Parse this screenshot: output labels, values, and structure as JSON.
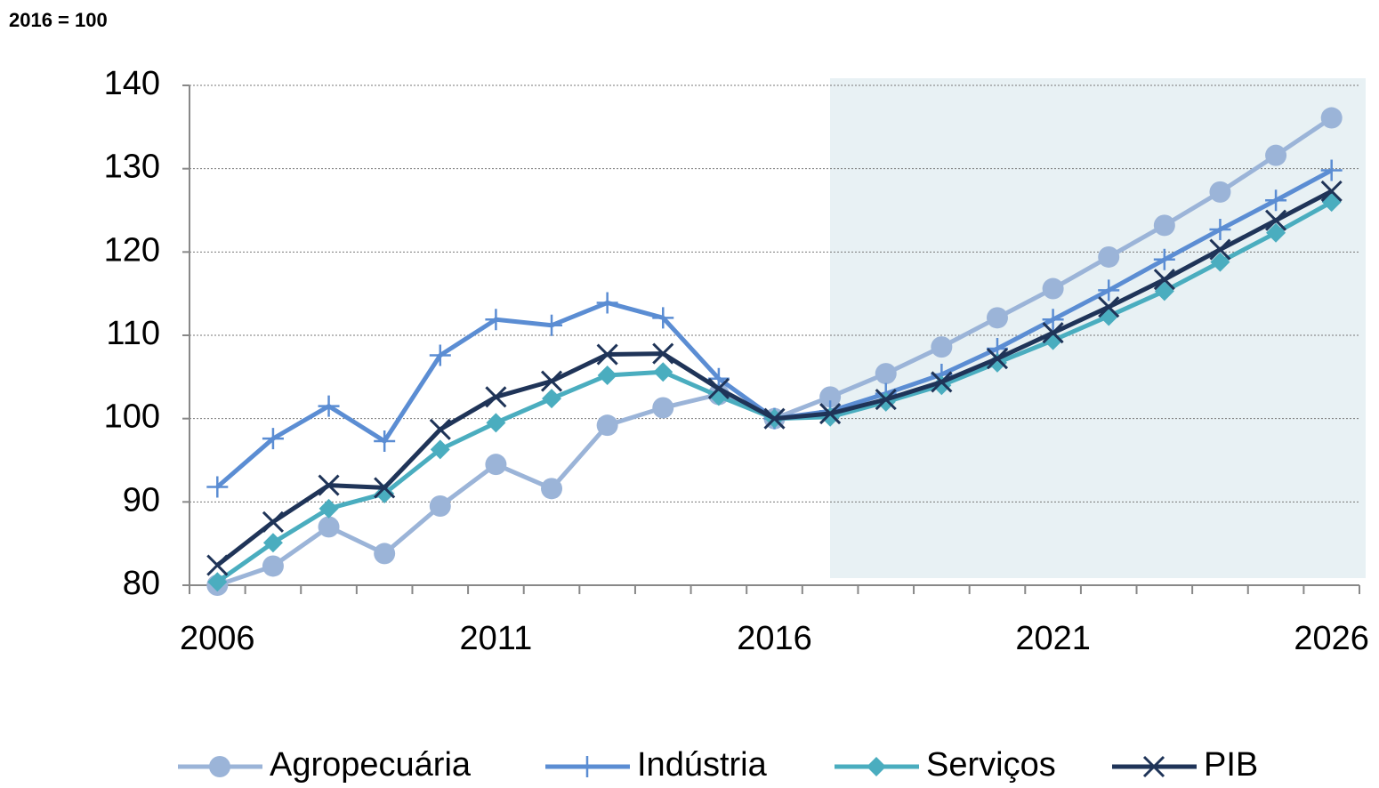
{
  "chart_data": {
    "type": "line",
    "title": "2016 = 100",
    "categories": [
      "2006",
      null,
      null,
      null,
      null,
      "2011",
      null,
      null,
      null,
      null,
      "2016",
      null,
      null,
      null,
      null,
      "2021",
      null,
      null,
      null,
      null,
      "2026"
    ],
    "series": [
      {
        "name": "Agropecuária",
        "color": "#9bb4d8",
        "marker": "circle",
        "values": [
          80.0,
          82.3,
          87.0,
          83.8,
          89.5,
          94.5,
          91.6,
          99.2,
          101.3,
          102.9,
          100,
          102.6,
          105.4,
          108.6,
          112.1,
          115.6,
          119.4,
          123.2,
          127.2,
          131.6,
          136.1
        ]
      },
      {
        "name": "Indústria",
        "color": "#5b8dd3",
        "marker": "plus",
        "values": [
          91.8,
          97.6,
          101.5,
          97.3,
          107.6,
          111.9,
          111.2,
          113.9,
          112.1,
          104.8,
          100,
          100.9,
          103.0,
          105.3,
          108.4,
          111.9,
          115.4,
          119.1,
          122.7,
          126.2,
          129.8
        ]
      },
      {
        "name": "Serviços",
        "color": "#4aadbf",
        "marker": "diamond",
        "values": [
          80.4,
          85.1,
          89.2,
          91.0,
          96.3,
          99.5,
          102.4,
          105.2,
          105.6,
          102.7,
          100,
          100.2,
          102.0,
          104.0,
          106.7,
          109.4,
          112.3,
          115.3,
          118.8,
          122.3,
          126.0
        ]
      },
      {
        "name": "PIB",
        "color": "#1f3458",
        "marker": "x",
        "values": [
          82.4,
          87.6,
          92.0,
          91.7,
          98.7,
          102.6,
          104.5,
          107.7,
          107.8,
          103.6,
          100,
          100.6,
          102.3,
          104.4,
          107.2,
          110.3,
          113.4,
          116.7,
          120.3,
          123.8,
          127.3
        ]
      }
    ],
    "ylim": [
      80,
      140
    ],
    "yticks": [
      80,
      90,
      100,
      110,
      120,
      130,
      140
    ],
    "grid": true,
    "legend": "bottom"
  }
}
